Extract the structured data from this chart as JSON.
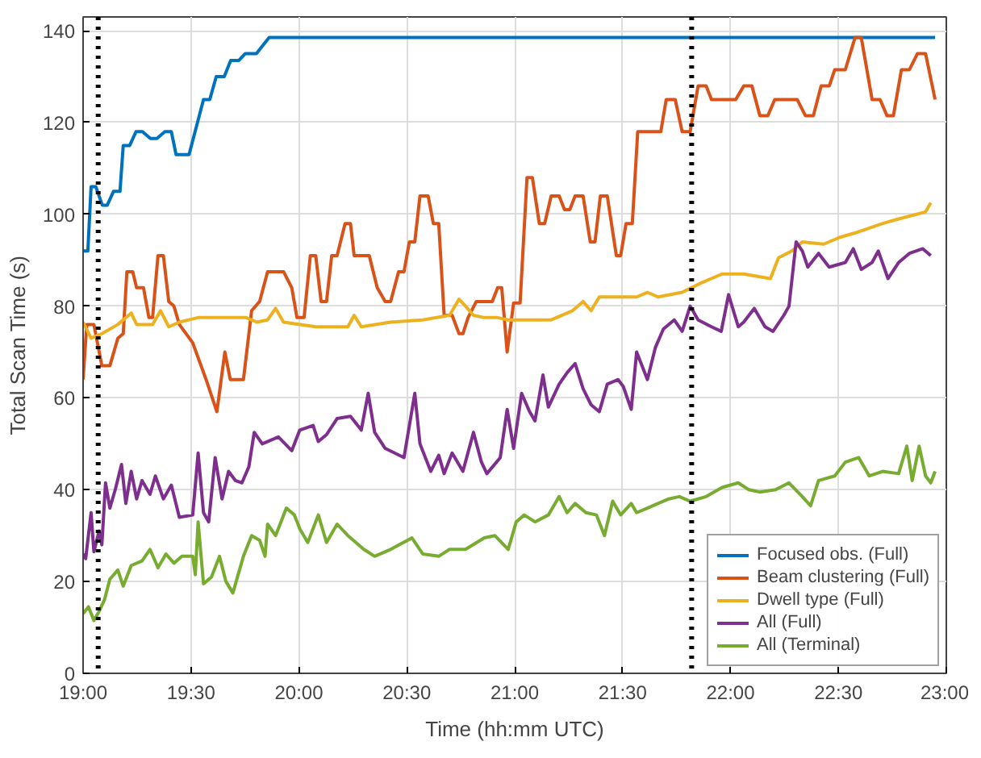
{
  "chart_data": {
    "type": "line",
    "xlabel": "Time (hh:mm UTC)",
    "ylabel": "Total Scan Time (s)",
    "xlim": [
      19,
      23
    ],
    "ylim": [
      0,
      143
    ],
    "xticks": [
      {
        "value": 19,
        "label": "19:00"
      },
      {
        "value": 19.5,
        "label": "19:30"
      },
      {
        "value": 20,
        "label": "20:00"
      },
      {
        "value": 20.5,
        "label": "20:30"
      },
      {
        "value": 21,
        "label": "21:00"
      },
      {
        "value": 21.5,
        "label": "21:30"
      },
      {
        "value": 22,
        "label": "22:00"
      },
      {
        "value": 22.5,
        "label": "22:30"
      },
      {
        "value": 23,
        "label": "23:00"
      }
    ],
    "yticks": [
      0,
      20,
      40,
      60,
      80,
      100,
      120,
      140
    ],
    "grid": true,
    "legend": "bottom right",
    "line_style": "solid",
    "marker": "none",
    "ref_lines": [
      {
        "axis": "x",
        "value": 19.07,
        "color": "#000000",
        "line_style": "dotted"
      },
      {
        "axis": "x",
        "value": 21.82,
        "color": "#000000",
        "line_style": "dotted"
      }
    ],
    "series": [
      {
        "name": "Focused obs. (Full)",
        "color": "#0072bd",
        "x": [
          19.0,
          19.022,
          19.037,
          19.059,
          19.089,
          19.112,
          19.141,
          19.171,
          19.186,
          19.216,
          19.245,
          19.275,
          19.312,
          19.342,
          19.379,
          19.409,
          19.431,
          19.468,
          19.491,
          19.558,
          19.587,
          19.617,
          19.654,
          19.684,
          19.721,
          19.751,
          19.803,
          19.862,
          22.948
        ],
        "values": [
          92,
          92,
          106,
          106,
          102,
          102,
          105,
          105,
          115,
          115,
          118,
          118,
          116.5,
          116.5,
          118,
          118,
          113,
          113,
          113,
          125,
          125,
          130,
          130,
          133.5,
          133.5,
          135,
          135,
          138.5,
          138.5
        ]
      },
      {
        "name": "Beam clustering (Full)",
        "color": "#d95319",
        "x": [
          19.0,
          19.017,
          19.05,
          19.087,
          19.124,
          19.161,
          19.186,
          19.203,
          19.23,
          19.248,
          19.28,
          19.305,
          19.322,
          19.347,
          19.372,
          19.397,
          19.421,
          19.446,
          19.508,
          19.57,
          19.62,
          19.657,
          19.682,
          19.743,
          19.781,
          19.818,
          19.855,
          19.929,
          19.967,
          19.991,
          20.024,
          20.053,
          20.078,
          20.103,
          20.128,
          20.152,
          20.177,
          20.214,
          20.239,
          20.256,
          20.326,
          20.363,
          20.4,
          20.425,
          20.462,
          20.487,
          20.512,
          20.537,
          20.561,
          20.599,
          20.623,
          20.648,
          20.673,
          20.71,
          20.742,
          20.76,
          20.784,
          20.822,
          20.896,
          20.921,
          20.94,
          20.965,
          20.995,
          21.025,
          21.057,
          21.082,
          21.114,
          21.139,
          21.169,
          21.206,
          21.231,
          21.255,
          21.28,
          21.317,
          21.35,
          21.372,
          21.397,
          21.429,
          21.471,
          21.491,
          21.516,
          21.545,
          21.57,
          21.677,
          21.702,
          21.744,
          21.776,
          21.813,
          21.85,
          21.887,
          21.912,
          22.024,
          22.062,
          22.099,
          22.136,
          22.173,
          22.205,
          22.309,
          22.347,
          22.384,
          22.42,
          22.458,
          22.483,
          22.532,
          22.577,
          22.606,
          22.656,
          22.693,
          22.725,
          22.755,
          22.792,
          22.829,
          22.866,
          22.904,
          22.948
        ],
        "values": [
          64,
          76,
          76,
          67,
          67,
          73,
          74,
          87.5,
          87.5,
          84,
          84,
          77.5,
          77.5,
          91,
          91,
          81,
          80,
          76,
          72,
          64,
          57,
          70,
          64,
          64,
          79,
          81,
          87.5,
          87.5,
          84,
          77.5,
          77.5,
          91,
          91,
          81,
          81,
          91,
          91,
          98,
          98,
          91,
          91,
          84,
          81,
          81,
          87.5,
          87.5,
          94,
          94,
          104,
          104,
          98,
          98,
          78,
          78,
          74,
          74,
          77.5,
          81,
          81,
          84,
          84,
          70,
          80.7,
          80.7,
          108,
          108,
          98,
          98,
          104,
          104,
          101,
          101,
          104,
          104,
          94,
          94,
          104,
          104,
          91,
          91,
          98,
          98,
          118,
          118,
          125,
          125,
          118,
          118,
          128,
          128,
          125,
          125,
          128,
          128,
          121.5,
          121.5,
          125,
          125,
          121.5,
          121.5,
          128,
          128,
          131.5,
          131.5,
          138.5,
          138.5,
          125,
          125,
          121.5,
          121.5,
          131.5,
          131.5,
          135,
          135,
          125
        ]
      },
      {
        "name": "Dwell type (Full)",
        "color": "#edb120",
        "x": [
          19.0,
          19.037,
          19.087,
          19.161,
          19.223,
          19.248,
          19.322,
          19.359,
          19.397,
          19.446,
          19.533,
          19.756,
          19.805,
          19.855,
          19.892,
          19.929,
          20.078,
          20.227,
          20.256,
          20.289,
          20.425,
          20.574,
          20.698,
          20.742,
          20.772,
          20.809,
          20.859,
          20.921,
          20.97,
          21.169,
          21.268,
          21.317,
          21.354,
          21.392,
          21.565,
          21.615,
          21.664,
          21.776,
          21.862,
          21.961,
          22.061,
          22.185,
          22.222,
          22.284,
          22.333,
          22.432,
          22.507,
          22.581,
          22.705,
          22.779,
          22.903,
          22.928
        ],
        "values": [
          76.5,
          73,
          74,
          76,
          78.5,
          76,
          76,
          79,
          75.5,
          76.5,
          77.5,
          77.5,
          76.5,
          77,
          79.5,
          76.5,
          75.5,
          75.5,
          78,
          75.5,
          76.5,
          77,
          78,
          81.5,
          80,
          78,
          77.5,
          77.5,
          77,
          77,
          79,
          81,
          79,
          82,
          82,
          83,
          82,
          83,
          85,
          87,
          87,
          86,
          90.5,
          92,
          94,
          93.5,
          95,
          96,
          98,
          99,
          100.5,
          102.5
        ]
      },
      {
        "name": "All (Full)",
        "color": "#7e2f8e",
        "x": [
          19.0,
          19.012,
          19.037,
          19.05,
          19.074,
          19.087,
          19.104,
          19.124,
          19.149,
          19.178,
          19.198,
          19.223,
          19.248,
          19.273,
          19.31,
          19.335,
          19.372,
          19.409,
          19.446,
          19.508,
          19.533,
          19.558,
          19.582,
          19.612,
          19.644,
          19.674,
          19.706,
          19.736,
          19.768,
          19.793,
          19.83,
          19.905,
          19.967,
          20.004,
          20.066,
          20.09,
          20.128,
          20.177,
          20.239,
          20.289,
          20.321,
          20.351,
          20.4,
          20.487,
          20.537,
          20.561,
          20.611,
          20.648,
          20.673,
          20.71,
          20.76,
          20.809,
          20.846,
          20.871,
          20.933,
          20.965,
          20.995,
          21.032,
          21.069,
          21.094,
          21.131,
          21.156,
          21.206,
          21.243,
          21.28,
          21.317,
          21.354,
          21.392,
          21.429,
          21.479,
          21.503,
          21.54,
          21.565,
          21.615,
          21.652,
          21.689,
          21.739,
          21.776,
          21.813,
          21.85,
          21.912,
          21.957,
          21.991,
          22.036,
          22.061,
          22.11,
          22.16,
          22.197,
          22.247,
          22.271,
          22.304,
          22.333,
          22.358,
          22.408,
          22.457,
          22.532,
          22.569,
          22.606,
          22.656,
          22.685,
          22.73,
          22.779,
          22.829,
          22.891,
          22.928
        ],
        "values": [
          26,
          25,
          35,
          26.5,
          31,
          28,
          41.5,
          36,
          40,
          45.5,
          37,
          44,
          38,
          42,
          39,
          43,
          38,
          41,
          34,
          34.5,
          48,
          35,
          33,
          47,
          38,
          44,
          42,
          41.5,
          45,
          52.5,
          50,
          51.5,
          48.5,
          53,
          54,
          50.5,
          52,
          55.5,
          56,
          53,
          61,
          52.5,
          49,
          47,
          61,
          50,
          44,
          47.5,
          43.5,
          48,
          44,
          52.5,
          46,
          43.5,
          47,
          57.5,
          49,
          61,
          57,
          55,
          65,
          58,
          63,
          65.5,
          67.5,
          62,
          58.5,
          57,
          63,
          64,
          62.5,
          57.5,
          70,
          64,
          71,
          75,
          77,
          74.5,
          80,
          77,
          75.5,
          74.5,
          82.5,
          75.5,
          76.5,
          79.5,
          75.5,
          74.5,
          78,
          80,
          94,
          92,
          88.5,
          91.5,
          88.5,
          89.5,
          92.5,
          88,
          89.5,
          92,
          86,
          89.5,
          91.5,
          92.5,
          91
        ]
      },
      {
        "name": "All (Terminal)",
        "color": "#77ac30",
        "x": [
          19.0,
          19.025,
          19.05,
          19.074,
          19.099,
          19.124,
          19.161,
          19.186,
          19.223,
          19.273,
          19.31,
          19.347,
          19.384,
          19.421,
          19.458,
          19.508,
          19.52,
          19.533,
          19.558,
          19.595,
          19.632,
          19.662,
          19.694,
          19.743,
          19.781,
          19.818,
          19.843,
          19.855,
          19.892,
          19.942,
          19.979,
          20.004,
          20.041,
          20.09,
          20.128,
          20.177,
          20.227,
          20.301,
          20.351,
          20.425,
          20.524,
          20.574,
          20.648,
          20.698,
          20.772,
          20.859,
          20.908,
          20.97,
          21.007,
          21.044,
          21.094,
          21.156,
          21.206,
          21.243,
          21.28,
          21.33,
          21.379,
          21.416,
          21.454,
          21.491,
          21.54,
          21.565,
          21.615,
          21.664,
          21.714,
          21.763,
          21.813,
          21.887,
          21.961,
          22.036,
          22.085,
          22.135,
          22.209,
          22.271,
          22.333,
          22.371,
          22.408,
          22.483,
          22.532,
          22.594,
          22.643,
          22.705,
          22.779,
          22.817,
          22.842,
          22.874,
          22.904,
          22.928,
          22.948
        ],
        "values": [
          13,
          14.5,
          11.5,
          13.5,
          16,
          20.5,
          22.5,
          19,
          23.5,
          24.5,
          27,
          23,
          26,
          24,
          25.5,
          25.5,
          21.5,
          33,
          19.5,
          21,
          25.5,
          20,
          17.5,
          25.5,
          30,
          29,
          25.5,
          32.5,
          30,
          36,
          34.5,
          31.5,
          28.5,
          34.5,
          28.5,
          32.5,
          30,
          27,
          25.5,
          27,
          29.5,
          26,
          25.5,
          27,
          27,
          29.5,
          30,
          27,
          33,
          34.5,
          33,
          34.5,
          38.5,
          35,
          37,
          35,
          34.5,
          30,
          37.5,
          34.5,
          37,
          35,
          36,
          37,
          38,
          38.5,
          37.5,
          38.5,
          40.5,
          41.5,
          40,
          39.5,
          40,
          41.5,
          38.5,
          36.5,
          42,
          43,
          46,
          47,
          43,
          44,
          43.5,
          49.5,
          42,
          49.5,
          43,
          41.5,
          44
        ]
      }
    ]
  }
}
